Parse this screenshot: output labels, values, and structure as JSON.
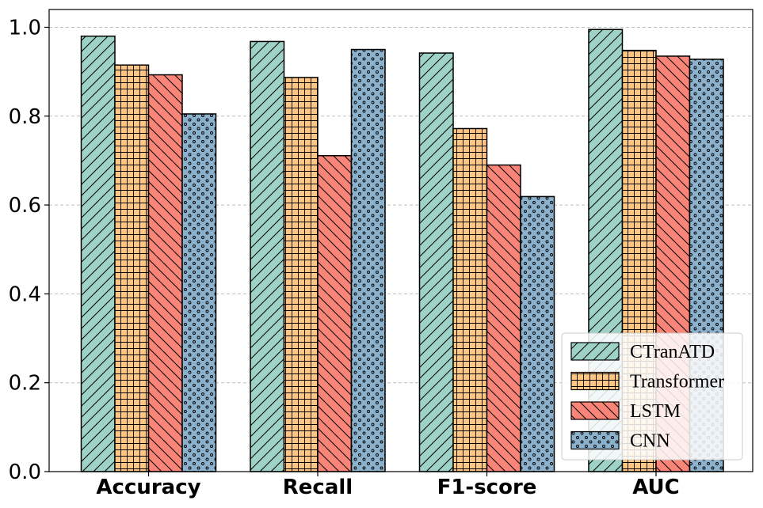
{
  "chart_data": {
    "type": "bar",
    "categories": [
      "Accuracy",
      "Recall",
      "F1-score",
      "AUC"
    ],
    "series": [
      {
        "name": "CTranATD",
        "values": [
          0.98,
          0.968,
          0.942,
          0.995
        ],
        "color": "#9fd2c6",
        "hatch": "diagonal-forward"
      },
      {
        "name": "Transformer",
        "values": [
          0.915,
          0.887,
          0.772,
          0.948
        ],
        "color": "#fec684",
        "hatch": "grid"
      },
      {
        "name": "LSTM",
        "values": [
          0.893,
          0.711,
          0.69,
          0.935
        ],
        "color": "#f98478",
        "hatch": "diagonal-back"
      },
      {
        "name": "CNN",
        "values": [
          0.805,
          0.95,
          0.619,
          0.928
        ],
        "color": "#8bb1cc",
        "hatch": "dots"
      }
    ],
    "yticks": [
      "0.0",
      "0.2",
      "0.4",
      "0.6",
      "0.8",
      "1.0"
    ],
    "ylim": [
      0,
      1.04
    ],
    "grid": "y-dashed",
    "legend_position": "bottom-right",
    "title": "",
    "xlabel": "",
    "ylabel": ""
  }
}
